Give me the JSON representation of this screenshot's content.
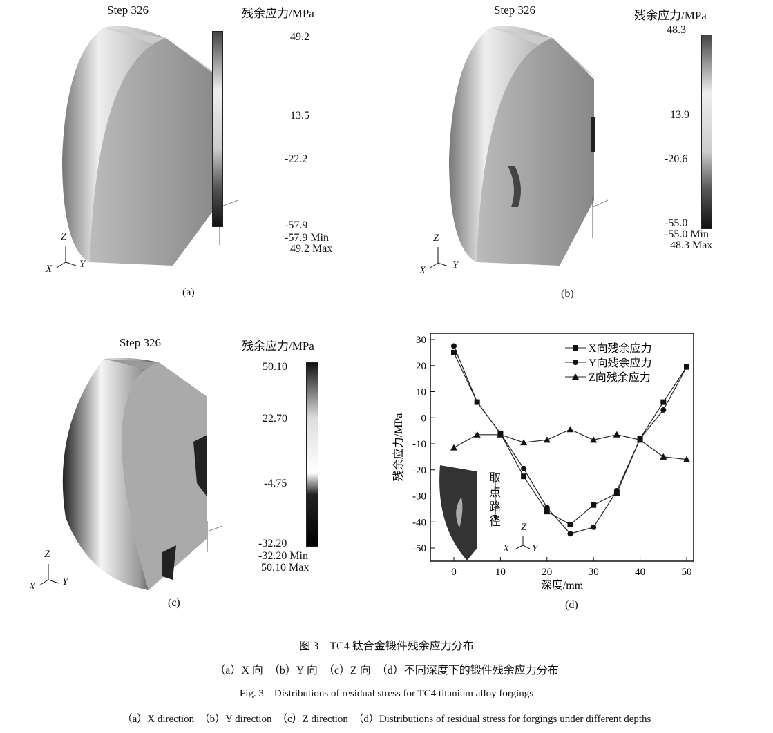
{
  "panels": {
    "a": {
      "step": "Step 326",
      "legend_title": "残余应力/MPa",
      "ticks": [
        "49.2",
        "13.5",
        "-22.2",
        "-57.9"
      ],
      "min": "-57.9 Min",
      "max": "49.2 Max",
      "label": "(a)",
      "axes": [
        "Z",
        "X",
        "Y"
      ]
    },
    "b": {
      "step": "Step 326",
      "legend_title": "残余应力/MPa",
      "ticks": [
        "48.3",
        "13.9",
        "-20.6",
        "-55.0"
      ],
      "min": "-55.0 Min",
      "max": "48.3 Max",
      "label": "(b)",
      "axes": [
        "Z",
        "X",
        "Y"
      ]
    },
    "c": {
      "step": "Step 326",
      "legend_title": "残余应力/MPa",
      "ticks": [
        "50.10",
        "22.70",
        "-4.75",
        "-32.20"
      ],
      "min": "-32.20 Min",
      "max": "50.10 Max",
      "label": "(c)",
      "axes": [
        "Z",
        "X",
        "Y"
      ]
    },
    "d": {
      "label": "(d)",
      "inset_text": "取点路径",
      "inset_axes": [
        "Z",
        "X",
        "Y"
      ]
    }
  },
  "chart_data": {
    "type": "line",
    "xlabel": "深度/mm",
    "ylabel": "残余应力/MPa",
    "xlim": [
      -5,
      53
    ],
    "ylim": [
      -55,
      35
    ],
    "xticks": [
      0,
      10,
      20,
      30,
      40,
      50
    ],
    "yticks": [
      30,
      20,
      10,
      0,
      -10,
      -20,
      -30,
      -40,
      -50
    ],
    "legend": "top-right",
    "grid": false,
    "x": [
      0,
      5,
      10,
      15,
      20,
      25,
      30,
      35,
      40,
      45,
      50
    ],
    "series": [
      {
        "name": "X向残余应力",
        "marker": "square",
        "values": [
          25,
          6,
          -6,
          -22.5,
          -36,
          -41,
          -33.5,
          -29,
          -8,
          6,
          19.5
        ]
      },
      {
        "name": "Y向残余应力",
        "marker": "circle",
        "values": [
          27.5,
          6,
          -6,
          -19.5,
          -34.5,
          -44.5,
          -42,
          -28,
          -8,
          3,
          19.5
        ]
      },
      {
        "name": "Z向残余应力",
        "marker": "triangle",
        "values": [
          -11.5,
          -6.5,
          -6.5,
          -9.5,
          -8.5,
          -4.5,
          -8.5,
          -6.5,
          -8.5,
          -15,
          -16
        ]
      }
    ]
  },
  "caption": {
    "cn_title": "图 3　TC4 钛合金锻件残余应力分布",
    "cn_sub": "（a）X 向　（b）Y 向　（c）Z 向　（d）不同深度下的锻件残余应力分布",
    "en_title": "Fig. 3　Distributions of residual stress for TC4 titanium alloy forgings",
    "en_sub": "（a）X direction　（b）Y direction　（c）Z direction　（d）Distributions of residual stress for forgings under different depths"
  }
}
